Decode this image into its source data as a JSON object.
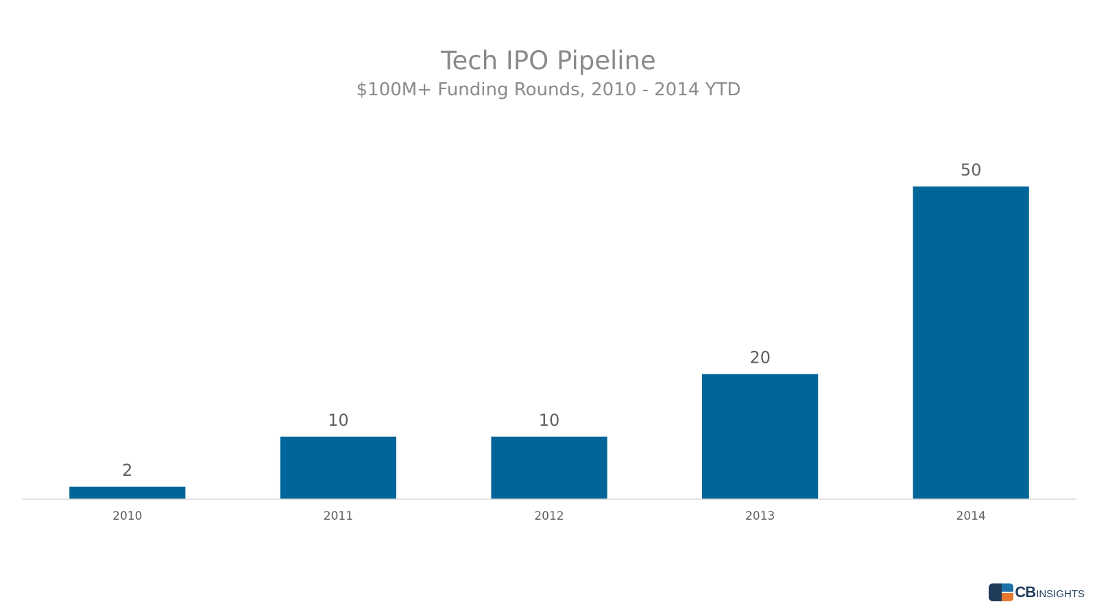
{
  "chart_data": {
    "type": "bar",
    "title": "Tech IPO Pipeline",
    "subtitle": "$100M+ Funding Rounds, 2010 - 2014 YTD",
    "categories": [
      "2010",
      "2011",
      "2012",
      "2013",
      "2014"
    ],
    "values": [
      2,
      10,
      10,
      20,
      50
    ],
    "data_labels": [
      "2",
      "10",
      "10",
      "20",
      "50"
    ],
    "xlabel": "",
    "ylabel": "",
    "ylim": [
      0,
      50
    ],
    "grid": false,
    "legend": "none",
    "bar_color": "#006699"
  },
  "brand": {
    "logo_primary": "CB",
    "logo_secondary": "INSIGHTS"
  }
}
